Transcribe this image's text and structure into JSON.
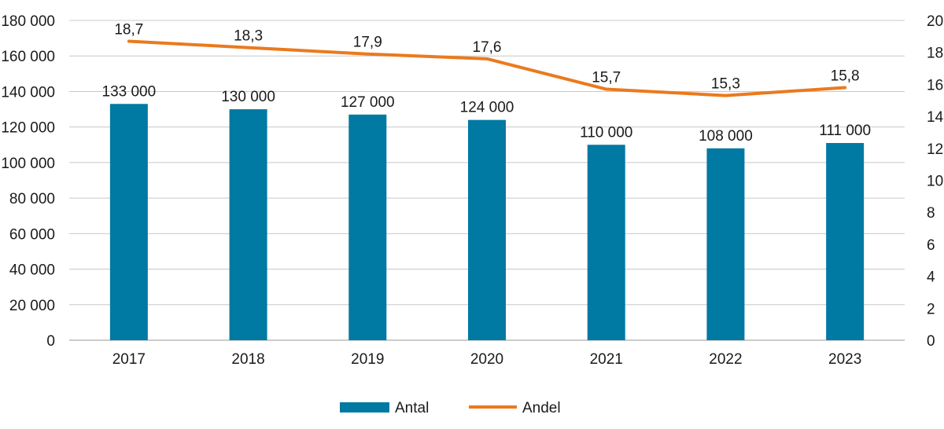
{
  "chart_data": {
    "type": "bar-line",
    "categories": [
      "2017",
      "2018",
      "2019",
      "2020",
      "2021",
      "2022",
      "2023"
    ],
    "series": [
      {
        "name": "Antal",
        "type": "bar",
        "axis": "left",
        "values": [
          133000,
          130000,
          127000,
          124000,
          110000,
          108000,
          111000
        ],
        "labels": [
          "133 000",
          "130 000",
          "127 000",
          "124 000",
          "110 000",
          "108 000",
          "111 000"
        ],
        "color": "#0079a3"
      },
      {
        "name": "Andel",
        "type": "line",
        "axis": "right",
        "values": [
          18.7,
          18.3,
          17.9,
          17.6,
          15.7,
          15.3,
          15.8
        ],
        "labels": [
          "18,7",
          "18,3",
          "17,9",
          "17,6",
          "15,7",
          "15,3",
          "15,8"
        ],
        "color": "#ea7a1e"
      }
    ],
    "y_left": {
      "range": [
        0,
        180000
      ],
      "ticks": [
        0,
        20000,
        40000,
        60000,
        80000,
        100000,
        120000,
        140000,
        160000,
        180000
      ],
      "tick_labels": [
        "0",
        "20 000",
        "40 000",
        "60 000",
        "80 000",
        "100 000",
        "120 000",
        "140 000",
        "160 000",
        "180 000"
      ]
    },
    "y_right": {
      "range": [
        0,
        20
      ],
      "ticks": [
        0,
        2,
        4,
        6,
        8,
        10,
        12,
        14,
        16,
        18,
        20
      ],
      "tick_labels": [
        "0",
        "2",
        "4",
        "6",
        "8",
        "10",
        "12",
        "14",
        "16",
        "18",
        "20"
      ]
    },
    "grid": true,
    "grid_color": "#c8c8c8",
    "legend_position": "bottom-center",
    "title": "",
    "xlabel": "",
    "ylabel": ""
  }
}
